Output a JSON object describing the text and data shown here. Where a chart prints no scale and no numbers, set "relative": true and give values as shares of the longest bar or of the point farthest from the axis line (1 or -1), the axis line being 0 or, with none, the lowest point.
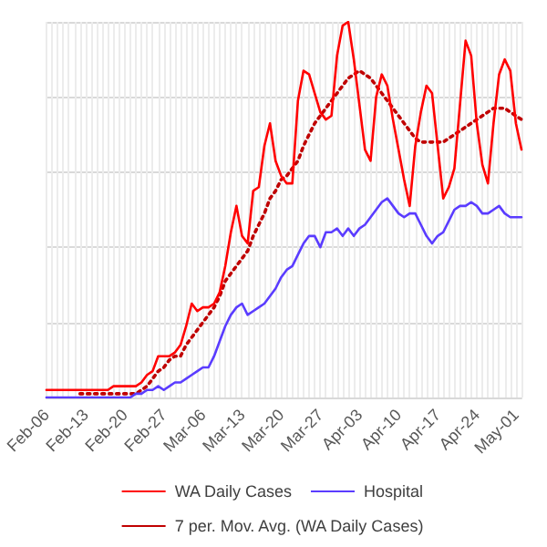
{
  "chart_data": {
    "type": "line",
    "relative": true,
    "grid": true,
    "legend": "bottom",
    "marker": "none",
    "categories": [
      "Feb-06",
      null,
      null,
      null,
      null,
      null,
      null,
      "Feb-13",
      null,
      null,
      null,
      null,
      null,
      null,
      "Feb-20",
      null,
      null,
      null,
      null,
      null,
      null,
      "Feb-27",
      null,
      null,
      null,
      null,
      null,
      null,
      "Mar-06",
      null,
      null,
      null,
      null,
      null,
      null,
      "Mar-13",
      null,
      null,
      null,
      null,
      null,
      null,
      "Mar-20",
      null,
      null,
      null,
      null,
      null,
      null,
      "Mar-27",
      null,
      null,
      null,
      null,
      null,
      null,
      "Apr-03",
      null,
      null,
      null,
      null,
      null,
      null,
      "Apr-10",
      null,
      null,
      null,
      null,
      null,
      null,
      "Apr-17",
      null,
      null,
      null,
      null,
      null,
      null,
      "Apr-24",
      null,
      null,
      null,
      null,
      null,
      null,
      "May-01",
      null
    ],
    "series": [
      {
        "name": "WA Daily Cases",
        "color": "#ff0000",
        "line_style": "solid",
        "values": [
          0.02,
          0.02,
          0.02,
          0.02,
          0.02,
          0.02,
          0.02,
          0.02,
          0.02,
          0.02,
          0.02,
          0.02,
          0.03,
          0.03,
          0.03,
          0.03,
          0.03,
          0.04,
          0.06,
          0.07,
          0.11,
          0.11,
          0.11,
          0.12,
          0.14,
          0.19,
          0.25,
          0.23,
          0.24,
          0.24,
          0.25,
          0.28,
          0.35,
          0.44,
          0.51,
          0.43,
          0.41,
          0.55,
          0.56,
          0.67,
          0.73,
          0.63,
          0.59,
          0.57,
          0.57,
          0.79,
          0.87,
          0.86,
          0.81,
          0.76,
          0.74,
          0.75,
          0.91,
          0.99,
          1.0,
          0.9,
          0.78,
          0.66,
          0.63,
          0.8,
          0.86,
          0.83,
          0.74,
          0.66,
          0.58,
          0.51,
          0.67,
          0.76,
          0.83,
          0.81,
          0.67,
          0.53,
          0.56,
          0.61,
          0.78,
          0.95,
          0.91,
          0.73,
          0.62,
          0.57,
          0.73,
          0.86,
          0.9,
          0.87,
          0.73,
          0.66
        ]
      },
      {
        "name": "Hospital",
        "color": "#5a3cff",
        "line_style": "solid",
        "values": [
          0,
          0,
          0,
          0,
          0,
          0,
          0,
          0,
          0,
          0,
          0,
          0,
          0,
          0,
          0,
          0,
          0.01,
          0.01,
          0.02,
          0.02,
          0.03,
          0.02,
          0.03,
          0.04,
          0.04,
          0.05,
          0.06,
          0.07,
          0.08,
          0.08,
          0.11,
          0.15,
          0.19,
          0.22,
          0.24,
          0.25,
          0.22,
          0.23,
          0.24,
          0.25,
          0.27,
          0.29,
          0.32,
          0.34,
          0.35,
          0.38,
          0.41,
          0.43,
          0.43,
          0.4,
          0.44,
          0.44,
          0.45,
          0.43,
          0.45,
          0.43,
          0.45,
          0.46,
          0.48,
          0.5,
          0.52,
          0.53,
          0.51,
          0.49,
          0.48,
          0.49,
          0.49,
          0.46,
          0.43,
          0.41,
          0.43,
          0.44,
          0.47,
          0.5,
          0.51,
          0.51,
          0.52,
          0.51,
          0.49,
          0.49,
          0.5,
          0.51,
          0.49,
          0.48,
          0.48,
          0.48
        ]
      },
      {
        "name": "7 per. Mov. Avg. (WA Daily Cases)",
        "color": "#c00000",
        "line_style": "dotted",
        "values": [
          null,
          null,
          null,
          null,
          null,
          null,
          0.01,
          0.01,
          0.01,
          0.01,
          0.01,
          0.01,
          0.01,
          0.01,
          0.01,
          0.01,
          0.01,
          0.02,
          0.03,
          0.05,
          0.07,
          0.08,
          0.1,
          0.11,
          0.11,
          0.14,
          0.16,
          0.18,
          0.2,
          0.22,
          0.24,
          0.27,
          0.31,
          0.33,
          0.35,
          0.37,
          0.39,
          0.43,
          0.46,
          0.49,
          0.53,
          0.55,
          0.58,
          0.59,
          0.61,
          0.63,
          0.67,
          0.7,
          0.73,
          0.75,
          0.77,
          0.79,
          0.81,
          0.83,
          0.85,
          0.86,
          0.87,
          0.86,
          0.85,
          0.83,
          0.81,
          0.79,
          0.77,
          0.75,
          0.73,
          0.71,
          0.69,
          0.68,
          0.68,
          0.68,
          0.68,
          0.68,
          0.69,
          0.7,
          0.71,
          0.72,
          0.73,
          0.74,
          0.75,
          0.76,
          0.77,
          0.77,
          0.77,
          0.76,
          0.75,
          0.74
        ]
      }
    ]
  }
}
